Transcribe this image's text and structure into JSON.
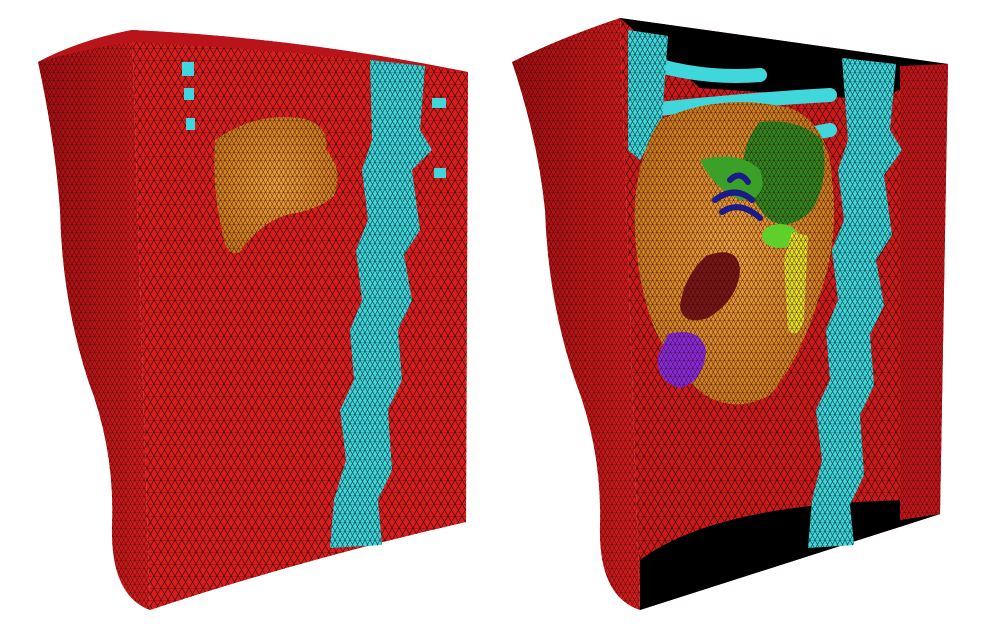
{
  "image": {
    "kind": "3D tetrahedral mesh renderings of a torso section",
    "background_color": "#ffffff"
  },
  "colors": {
    "body_tissue": "#d91c1c",
    "body_tissue_dark": "#a30d12",
    "mesh_lines": "#1a0505",
    "spine_bone": "#3fd6dc",
    "liver": "#e0922e",
    "gallbladder_green": "#2f8a1e",
    "portal_vessels": "#1a1a8a",
    "pancreas_yellow": "#e6e02a",
    "kidney_dark_red": "#7a1616",
    "stomach_purple": "#8a2be2",
    "cavity_black": "#000000"
  },
  "panels": [
    {
      "id": "left",
      "view": "closed block",
      "visible_structures": [
        "body-tissue",
        "spine",
        "liver-patch"
      ]
    },
    {
      "id": "right",
      "view": "cutaway",
      "visible_structures": [
        "body-tissue",
        "spine",
        "ribs",
        "liver",
        "gallbladder",
        "portal-vessels",
        "pancreas",
        "kidney",
        "stomach",
        "cavity"
      ]
    }
  ]
}
